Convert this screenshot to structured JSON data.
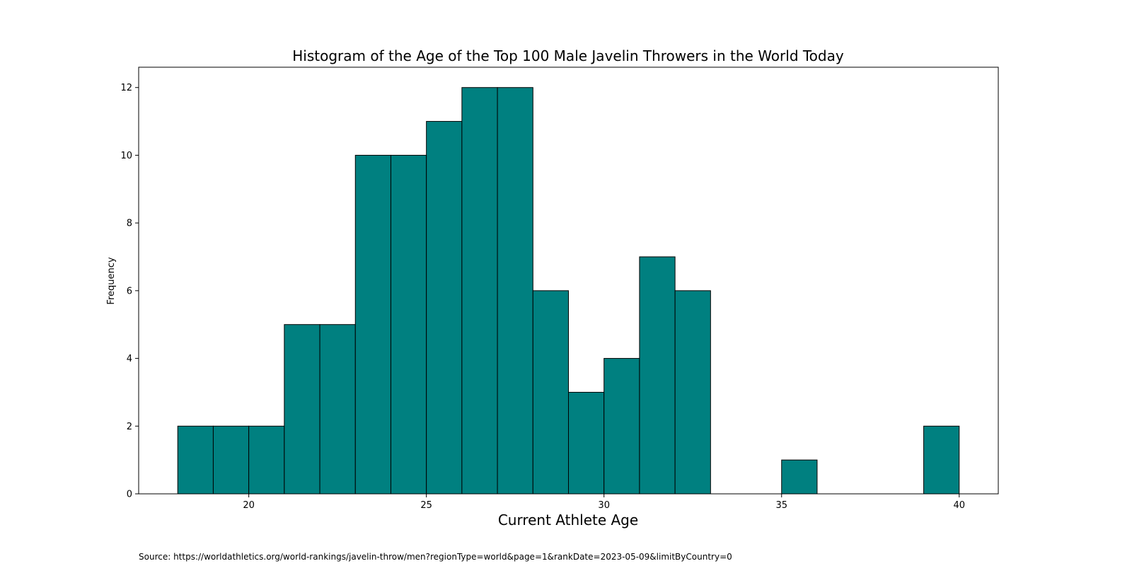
{
  "chart_data": {
    "type": "bar",
    "title": "Histogram of the Age of the Top 100 Male Javelin Throwers in the World Today",
    "xlabel": "Current Athlete Age",
    "ylabel": "Frequency",
    "xlim": [
      16.9,
      41.1
    ],
    "ylim": [
      0,
      12.6
    ],
    "xticks": [
      20,
      25,
      30,
      35,
      40
    ],
    "yticks": [
      0,
      2,
      4,
      6,
      8,
      10,
      12
    ],
    "bins": [
      {
        "start": 18,
        "end": 19,
        "count": 2
      },
      {
        "start": 19,
        "end": 20,
        "count": 2
      },
      {
        "start": 20,
        "end": 21,
        "count": 2
      },
      {
        "start": 21,
        "end": 22,
        "count": 5
      },
      {
        "start": 22,
        "end": 23,
        "count": 5
      },
      {
        "start": 23,
        "end": 24,
        "count": 10
      },
      {
        "start": 24,
        "end": 25,
        "count": 10
      },
      {
        "start": 25,
        "end": 26,
        "count": 11
      },
      {
        "start": 26,
        "end": 27,
        "count": 12
      },
      {
        "start": 27,
        "end": 28,
        "count": 12
      },
      {
        "start": 28,
        "end": 29,
        "count": 6
      },
      {
        "start": 29,
        "end": 30,
        "count": 3
      },
      {
        "start": 30,
        "end": 31,
        "count": 4
      },
      {
        "start": 31,
        "end": 32,
        "count": 7
      },
      {
        "start": 32,
        "end": 33,
        "count": 6
      },
      {
        "start": 33,
        "end": 34,
        "count": 0
      },
      {
        "start": 34,
        "end": 35,
        "count": 0
      },
      {
        "start": 35,
        "end": 36,
        "count": 1
      },
      {
        "start": 36,
        "end": 37,
        "count": 0
      },
      {
        "start": 37,
        "end": 38,
        "count": 0
      },
      {
        "start": 38,
        "end": 39,
        "count": 0
      },
      {
        "start": 39,
        "end": 40,
        "count": 2
      }
    ],
    "bar_color": "#008080",
    "edge_color": "#000000",
    "grid": false,
    "source_note": "Source: https://worldathletics.org/world-rankings/javelin-throw/men?regionType=world&page=1&rankDate=2023-05-09&limitByCountry=0"
  }
}
